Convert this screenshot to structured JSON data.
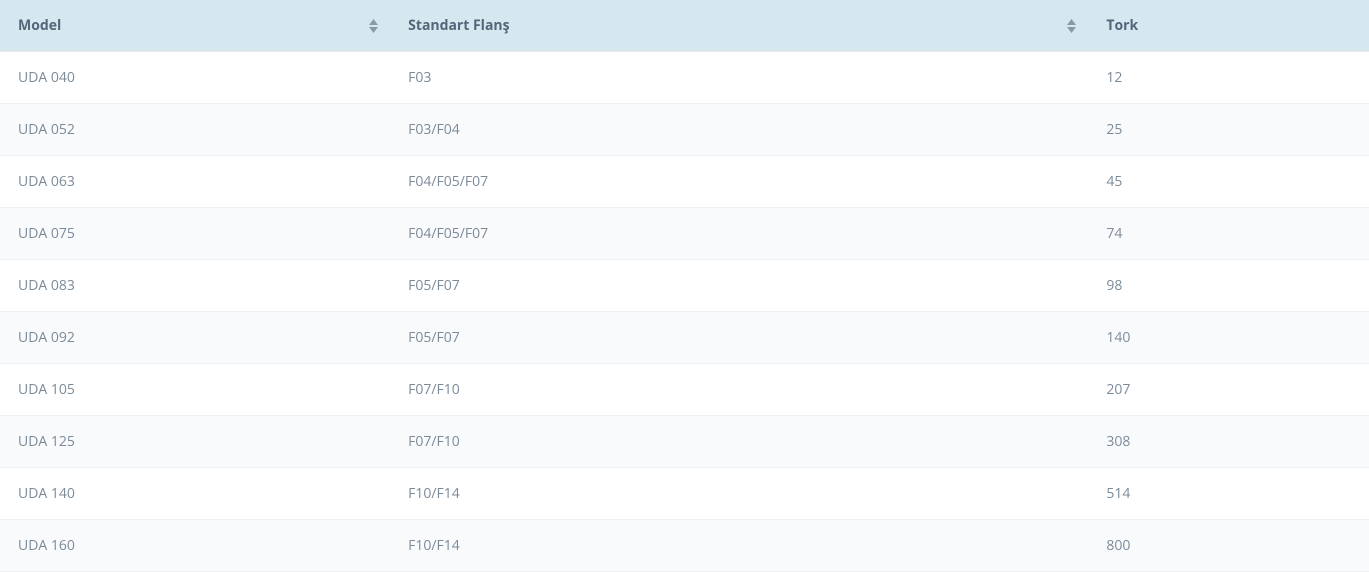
{
  "table": {
    "columns": [
      {
        "key": "model",
        "label": "Model",
        "sortable": true,
        "widthClass": "col-model"
      },
      {
        "key": "flange",
        "label": "Standart Flanş",
        "sortable": true,
        "widthClass": "col-flange"
      },
      {
        "key": "tork",
        "label": "Tork",
        "sortable": false,
        "widthClass": "col-tork"
      }
    ],
    "rows": [
      {
        "model": "UDA 040",
        "flange": "F03",
        "tork": "12"
      },
      {
        "model": "UDA 052",
        "flange": "F03/F04",
        "tork": "25"
      },
      {
        "model": "UDA 063",
        "flange": "F04/F05/F07",
        "tork": "45"
      },
      {
        "model": "UDA 075",
        "flange": "F04/F05/F07",
        "tork": "74"
      },
      {
        "model": "UDA 083",
        "flange": "F05/F07",
        "tork": "98"
      },
      {
        "model": "UDA 092",
        "flange": "F05/F07",
        "tork": "140"
      },
      {
        "model": "UDA 105",
        "flange": "F07/F10",
        "tork": "207"
      },
      {
        "model": "UDA 125",
        "flange": "F07/F10",
        "tork": "308"
      },
      {
        "model": "UDA 140",
        "flange": "F10/F14",
        "tork": "514"
      },
      {
        "model": "UDA 160",
        "flange": "F10/F14",
        "tork": "800"
      }
    ],
    "header_bg": "#d5e8ef",
    "header_text_color": "#54667a",
    "cell_text_color": "#7b8a99",
    "row_border_color": "#eef1f3",
    "stripe_bg": "#f9fafb",
    "sort_arrow_color": "#8a99a8"
  }
}
